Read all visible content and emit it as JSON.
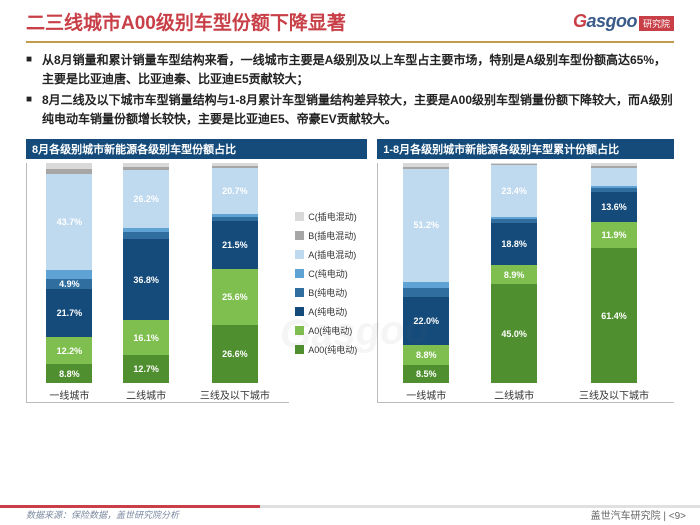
{
  "title": "二三线城市A00级别车型份额下降显著",
  "logo_text": "asgoo",
  "logo_sub": "研究院",
  "bullets": [
    "从8月销量和累计销量车型结构来看，一线城市主要是A级别及以上车型占主要市场，特别是A级别车型份额高达65%，主要是比亚迪唐、比亚迪秦、比亚迪E5贡献较大；",
    "8月二线及以下城市车型销量结构与1-8月累计车型销量结构差异较大，主要是A00级别车型销量份额下降较大，而A级别纯电动车销量份额增长较快，主要是比亚迪E5、帝豪EV贡献较大。"
  ],
  "legend": [
    {
      "label": "C(插电混动)",
      "color": "#d9d9d9"
    },
    {
      "label": "B(插电混动)",
      "color": "#a6a6a6"
    },
    {
      "label": "A(插电混动)",
      "color": "#bfd9ef"
    },
    {
      "label": "C(纯电动)",
      "color": "#5fa3d4"
    },
    {
      "label": "B(纯电动)",
      "color": "#2f6e9e"
    },
    {
      "label": "A(纯电动)",
      "color": "#144b7a"
    },
    {
      "label": "A0(纯电动)",
      "color": "#7fbf4f"
    },
    {
      "label": "A00(纯电动)",
      "color": "#4f8f2f"
    }
  ],
  "chart_left": {
    "title": "8月各级别城市新能源各级别车型份额占比",
    "categories": [
      "一线城市",
      "二线城市",
      "三线及以下城市"
    ],
    "stacks": [
      [
        {
          "v": 8.8,
          "c": "#4f8f2f",
          "t": "8.8%"
        },
        {
          "v": 12.2,
          "c": "#7fbf4f",
          "t": "12.2%"
        },
        {
          "v": 21.7,
          "c": "#144b7a",
          "t": "21.7%"
        },
        {
          "v": 4.9,
          "c": "#2f6e9e",
          "t": "4.9%"
        },
        {
          "v": 4,
          "c": "#5fa3d4"
        },
        {
          "v": 43.7,
          "c": "#bfd9ef",
          "t": "43.7%"
        },
        {
          "v": 2,
          "c": "#a6a6a6"
        },
        {
          "v": 2.7,
          "c": "#d9d9d9"
        }
      ],
      [
        {
          "v": 12.7,
          "c": "#4f8f2f",
          "t": "12.7%"
        },
        {
          "v": 16.1,
          "c": "#7fbf4f",
          "t": "16.1%"
        },
        {
          "v": 36.8,
          "c": "#144b7a",
          "t": "36.8%"
        },
        {
          "v": 3,
          "c": "#2f6e9e"
        },
        {
          "v": 2,
          "c": "#5fa3d4"
        },
        {
          "v": 26.2,
          "c": "#bfd9ef",
          "t": "26.2%"
        },
        {
          "v": 1.5,
          "c": "#a6a6a6"
        },
        {
          "v": 1.7,
          "c": "#d9d9d9"
        }
      ],
      [
        {
          "v": 26.6,
          "c": "#4f8f2f",
          "t": "26.6%"
        },
        {
          "v": 25.6,
          "c": "#7fbf4f",
          "t": "25.6%"
        },
        {
          "v": 21.5,
          "c": "#144b7a",
          "t": "21.5%"
        },
        {
          "v": 2,
          "c": "#2f6e9e"
        },
        {
          "v": 1.5,
          "c": "#5fa3d4"
        },
        {
          "v": 20.7,
          "c": "#bfd9ef",
          "t": "20.7%"
        },
        {
          "v": 1,
          "c": "#a6a6a6"
        },
        {
          "v": 1.1,
          "c": "#d9d9d9"
        }
      ]
    ]
  },
  "chart_right": {
    "title": "1-8月各级别城市新能源各级别车型累计份额占比",
    "categories": [
      "一线城市",
      "二线城市",
      "三线及以下城市"
    ],
    "stacks": [
      [
        {
          "v": 8.5,
          "c": "#4f8f2f",
          "t": "8.5%"
        },
        {
          "v": 8.8,
          "c": "#7fbf4f",
          "t": "8.8%"
        },
        {
          "v": 22.0,
          "c": "#144b7a",
          "t": "22.0%"
        },
        {
          "v": 4,
          "c": "#2f6e9e"
        },
        {
          "v": 3,
          "c": "#5fa3d4"
        },
        {
          "v": 51.2,
          "c": "#bfd9ef",
          "t": "51.2%"
        },
        {
          "v": 1,
          "c": "#a6a6a6"
        },
        {
          "v": 1.5,
          "c": "#d9d9d9"
        }
      ],
      [
        {
          "v": 45.0,
          "c": "#4f8f2f",
          "t": "45.0%"
        },
        {
          "v": 8.9,
          "c": "#7fbf4f",
          "t": "8.9%"
        },
        {
          "v": 18.8,
          "c": "#144b7a",
          "t": "18.8%"
        },
        {
          "v": 2,
          "c": "#2f6e9e"
        },
        {
          "v": 1,
          "c": "#5fa3d4"
        },
        {
          "v": 23.4,
          "c": "#bfd9ef",
          "t": "23.4%"
        },
        {
          "v": 0.5,
          "c": "#a6a6a6"
        },
        {
          "v": 0.4,
          "c": "#d9d9d9"
        }
      ],
      [
        {
          "v": 61.4,
          "c": "#4f8f2f",
          "t": "61.4%"
        },
        {
          "v": 11.9,
          "c": "#7fbf4f",
          "t": "11.9%"
        },
        {
          "v": 13.6,
          "c": "#144b7a",
          "t": "13.6%"
        },
        {
          "v": 2,
          "c": "#2f6e9e"
        },
        {
          "v": 1,
          "c": "#5fa3d4"
        },
        {
          "v": 8,
          "c": "#bfd9ef"
        },
        {
          "v": 1,
          "c": "#a6a6a6"
        },
        {
          "v": 1.1,
          "c": "#d9d9d9"
        }
      ]
    ]
  },
  "source": "数据来源：保险数据，盖世研究院分析",
  "page_label": "盖世汽车研究院 | ",
  "page_num": "9",
  "watermark": "Gasgoo"
}
